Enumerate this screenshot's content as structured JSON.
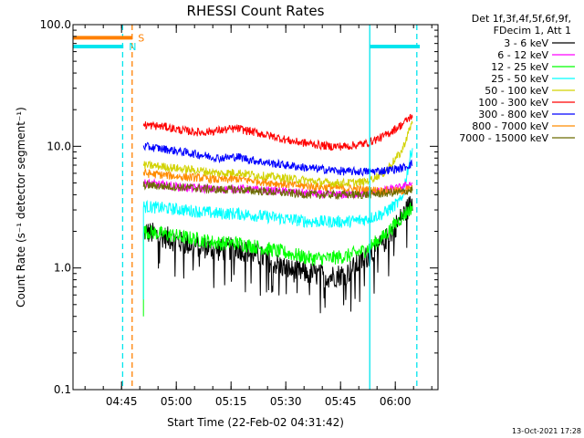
{
  "chart_data": {
    "type": "line",
    "title": "RHESSI Count Rates",
    "xlabel": "Start Time (22-Feb-02 04:31:42)",
    "ylabel": "Count Rate (s⁻¹ detector segment⁻¹)",
    "yscale": "log",
    "ylim": [
      0.1,
      100
    ],
    "xlim_minutes_after_04_31_42": [
      0,
      36.3
    ],
    "x_ticks": [
      "04:45",
      "05:00",
      "05:15",
      "05:30",
      "05:45",
      "06:00"
    ],
    "x_tick_minutes": [
      13.3,
      28.3,
      43.3,
      58.3,
      73.3,
      88.3
    ],
    "y_ticks": [
      "0.1",
      "1.0",
      "10.0",
      "100.0"
    ],
    "y_tick_values": [
      0.1,
      1,
      10,
      100
    ],
    "legend_header": [
      "Det 1f,3f,4f,5f,6f,9f,",
      "FDecim 1, Att 1"
    ],
    "legend_placement": "right",
    "x_minutes": [
      19.3,
      25,
      30,
      35,
      40,
      45,
      50,
      55,
      60,
      65,
      70,
      75,
      80,
      85,
      90,
      93
    ],
    "series": [
      {
        "name": "3 - 6 keV",
        "color": "#000000",
        "values": [
          2.0,
          1.8,
          1.6,
          1.5,
          1.4,
          1.45,
          1.3,
          1.1,
          0.95,
          0.9,
          0.85,
          0.9,
          1.2,
          1.6,
          2.6,
          3.5
        ]
      },
      {
        "name": "6 - 12 keV",
        "color": "#ff00ff",
        "values": [
          5.0,
          4.8,
          4.6,
          4.5,
          4.4,
          4.5,
          4.4,
          4.3,
          4.2,
          4.1,
          4.0,
          4.0,
          4.1,
          4.3,
          4.6,
          5.0
        ]
      },
      {
        "name": "12 - 25 keV",
        "color": "#00ff00",
        "values": [
          2.0,
          1.9,
          1.8,
          1.7,
          1.6,
          1.6,
          1.5,
          1.4,
          1.3,
          1.2,
          1.2,
          1.25,
          1.4,
          1.8,
          2.6,
          3.2
        ]
      },
      {
        "name": "25 - 50 keV",
        "color": "#00ffff",
        "values": [
          3.2,
          3.1,
          3.0,
          2.9,
          2.8,
          2.8,
          2.7,
          2.6,
          2.5,
          2.4,
          2.4,
          2.4,
          2.5,
          2.8,
          3.6,
          10.0
        ]
      },
      {
        "name": "50 - 100 keV",
        "color": "#d2d200",
        "values": [
          7.0,
          6.8,
          6.5,
          6.3,
          6.0,
          6.1,
          5.8,
          5.6,
          5.4,
          5.2,
          5.0,
          5.0,
          5.1,
          6.0,
          9.0,
          16.0
        ]
      },
      {
        "name": "100 - 300 keV",
        "color": "#ff0000",
        "values": [
          15.0,
          14.5,
          13.5,
          13.0,
          13.5,
          14.0,
          13.0,
          12.0,
          11.0,
          10.5,
          10.0,
          10.0,
          10.5,
          12.0,
          15.0,
          18.0
        ]
      },
      {
        "name": "300 - 800 keV",
        "color": "#0000ff",
        "values": [
          10.0,
          9.5,
          9.0,
          8.5,
          8.0,
          8.2,
          7.6,
          7.2,
          6.9,
          6.6,
          6.4,
          6.2,
          6.2,
          6.3,
          6.6,
          7.2
        ]
      },
      {
        "name": "800 - 7000 keV",
        "color": "#ff8c00",
        "values": [
          6.0,
          5.8,
          5.6,
          5.5,
          5.3,
          5.4,
          5.2,
          5.0,
          4.8,
          4.7,
          4.6,
          4.5,
          4.4,
          4.3,
          4.3,
          4.5
        ]
      },
      {
        "name": "7000 - 15000 keV",
        "color": "#6b6b00",
        "values": [
          4.8,
          4.7,
          4.6,
          4.5,
          4.4,
          4.4,
          4.3,
          4.2,
          4.1,
          4.0,
          4.0,
          4.0,
          4.0,
          4.1,
          4.2,
          4.4
        ]
      }
    ],
    "flags": [
      {
        "label": "S",
        "color": "#ff8000",
        "level": 78,
        "x_start_min": 0,
        "x_end_min": 16.3
      },
      {
        "label": "N",
        "color": "#00e5ee",
        "level": 66,
        "x_start_min": 0,
        "x_end_min": 13.8
      }
    ],
    "night_right_flag": {
      "color": "#00e5ee",
      "level": 66,
      "x_start_min": 81.3,
      "x_end_min": 95
    },
    "vertical_markers": [
      {
        "x_min": 13.6,
        "color": "#00e5ee",
        "style": "dashed"
      },
      {
        "x_min": 16.2,
        "color": "#ff8000",
        "style": "dashed"
      },
      {
        "x_min": 81.3,
        "color": "#00e5ee",
        "style": "solid"
      },
      {
        "x_min": 94.2,
        "color": "#00e5ee",
        "style": "dashed"
      }
    ],
    "timestamp": "13-Oct-2021 17:28"
  }
}
